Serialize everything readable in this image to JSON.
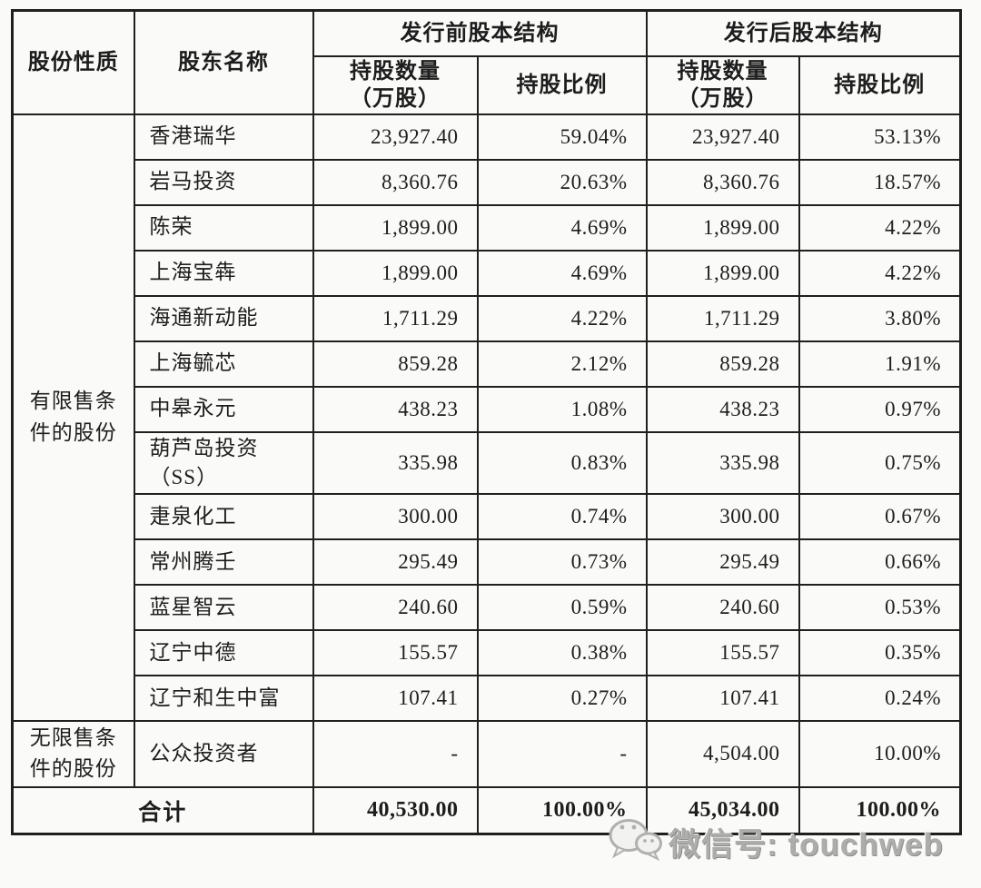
{
  "table": {
    "headers": {
      "share_nature": "股份性质",
      "shareholder_name": "股东名称",
      "pre_issue_group": "发行前股本结构",
      "post_issue_group": "发行后股本结构",
      "qty": "持股数量\n（万股）",
      "pct": "持股比例"
    },
    "groups": [
      {
        "label": "有限售条\n件的股份",
        "rows": [
          {
            "name": "香港瑞华",
            "pre_qty": "23,927.40",
            "pre_pct": "59.04%",
            "post_qty": "23,927.40",
            "post_pct": "53.13%",
            "tall": false
          },
          {
            "name": "岩马投资",
            "pre_qty": "8,360.76",
            "pre_pct": "20.63%",
            "post_qty": "8,360.76",
            "post_pct": "18.57%",
            "tall": false
          },
          {
            "name": "陈荣",
            "pre_qty": "1,899.00",
            "pre_pct": "4.69%",
            "post_qty": "1,899.00",
            "post_pct": "4.22%",
            "tall": false
          },
          {
            "name": "上海宝犇",
            "pre_qty": "1,899.00",
            "pre_pct": "4.69%",
            "post_qty": "1,899.00",
            "post_pct": "4.22%",
            "tall": false
          },
          {
            "name": "海通新动能",
            "pre_qty": "1,711.29",
            "pre_pct": "4.22%",
            "post_qty": "1,711.29",
            "post_pct": "3.80%",
            "tall": false
          },
          {
            "name": "上海毓芯",
            "pre_qty": "859.28",
            "pre_pct": "2.12%",
            "post_qty": "859.28",
            "post_pct": "1.91%",
            "tall": false
          },
          {
            "name": "中皋永元",
            "pre_qty": "438.23",
            "pre_pct": "1.08%",
            "post_qty": "438.23",
            "post_pct": "0.97%",
            "tall": false
          },
          {
            "name": "葫芦岛投资\n（SS）",
            "pre_qty": "335.98",
            "pre_pct": "0.83%",
            "post_qty": "335.98",
            "post_pct": "0.75%",
            "tall": true
          },
          {
            "name": "疌泉化工",
            "pre_qty": "300.00",
            "pre_pct": "0.74%",
            "post_qty": "300.00",
            "post_pct": "0.67%",
            "tall": false
          },
          {
            "name": "常州腾壬",
            "pre_qty": "295.49",
            "pre_pct": "0.73%",
            "post_qty": "295.49",
            "post_pct": "0.66%",
            "tall": false
          },
          {
            "name": "蓝星智云",
            "pre_qty": "240.60",
            "pre_pct": "0.59%",
            "post_qty": "240.60",
            "post_pct": "0.53%",
            "tall": false
          },
          {
            "name": "辽宁中德",
            "pre_qty": "155.57",
            "pre_pct": "0.38%",
            "post_qty": "155.57",
            "post_pct": "0.35%",
            "tall": false
          },
          {
            "name": "辽宁和生中富",
            "pre_qty": "107.41",
            "pre_pct": "0.27%",
            "post_qty": "107.41",
            "post_pct": "0.24%",
            "tall": false
          }
        ]
      },
      {
        "label": "无限售条\n件的股份",
        "rows": [
          {
            "name": "公众投资者",
            "pre_qty": "-",
            "pre_pct": "-",
            "post_qty": "4,504.00",
            "post_pct": "10.00%",
            "tall": true
          }
        ]
      }
    ],
    "total": {
      "label": "合计",
      "pre_qty": "40,530.00",
      "pre_pct": "100.00%",
      "post_qty": "45,034.00",
      "post_pct": "100.00%"
    }
  },
  "watermark": {
    "icon": "wechat-icon",
    "text": "微信号: touchweb"
  }
}
